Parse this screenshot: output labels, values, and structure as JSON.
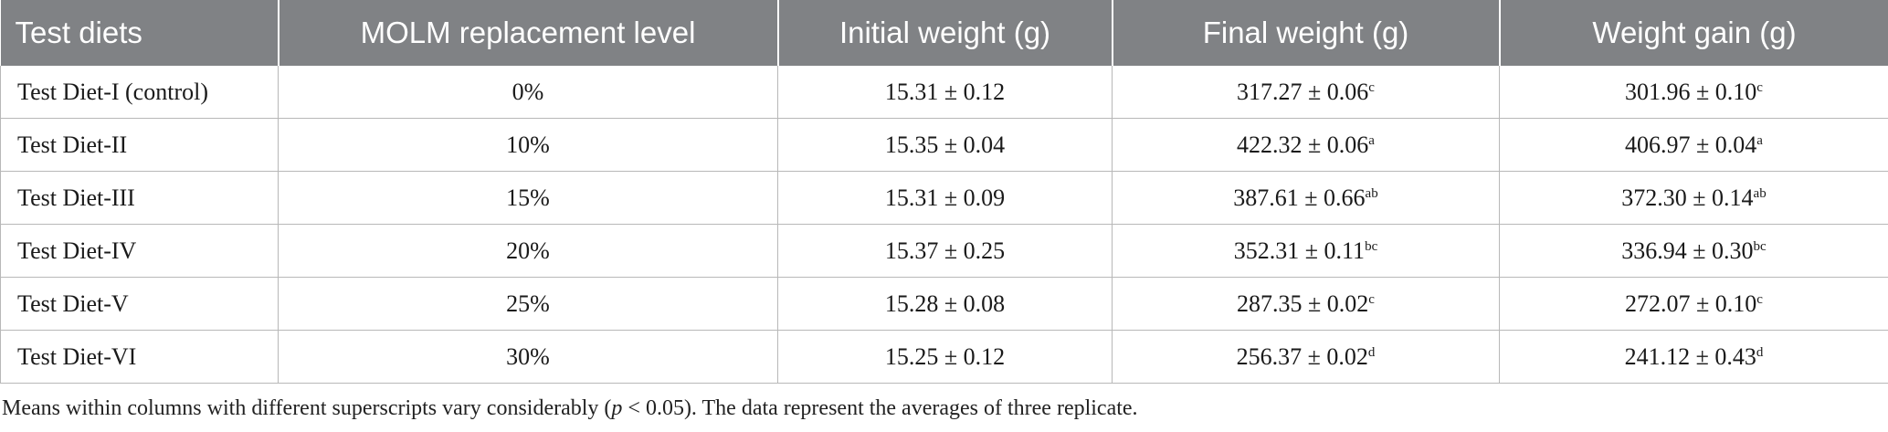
{
  "table": {
    "headers": [
      "Test diets",
      "MOLM replacement level",
      "Initial weight (g)",
      "Final weight (g)",
      "Weight gain (g)"
    ],
    "rows": [
      {
        "diet": "Test Diet-I (control)",
        "level": "0%",
        "initial": "15.31 ± 0.12",
        "final": "317.27 ± 0.06",
        "final_sup": "c",
        "gain": "301.96 ± 0.10",
        "gain_sup": "c"
      },
      {
        "diet": "Test Diet-II",
        "level": "10%",
        "initial": "15.35 ± 0.04",
        "final": "422.32 ± 0.06",
        "final_sup": "a",
        "gain": "406.97 ± 0.04",
        "gain_sup": "a"
      },
      {
        "diet": "Test Diet-III",
        "level": "15%",
        "initial": "15.31 ± 0.09",
        "final": "387.61 ± 0.66",
        "final_sup": "ab",
        "gain": "372.30 ± 0.14",
        "gain_sup": "ab"
      },
      {
        "diet": "Test Diet-IV",
        "level": "20%",
        "initial": "15.37 ± 0.25",
        "final": "352.31 ± 0.11",
        "final_sup": "bc",
        "gain": "336.94 ± 0.30",
        "gain_sup": "bc"
      },
      {
        "diet": "Test Diet-V",
        "level": "25%",
        "initial": "15.28 ± 0.08",
        "final": "287.35 ± 0.02",
        "final_sup": "c",
        "gain": "272.07 ± 0.10",
        "gain_sup": "c"
      },
      {
        "diet": "Test Diet-VI",
        "level": "30%",
        "initial": "15.25 ± 0.12",
        "final": "256.37 ± 0.02",
        "final_sup": "d",
        "gain": "241.12 ± 0.43",
        "gain_sup": "d"
      }
    ]
  },
  "footnote": {
    "before": "Means within columns with different superscripts vary considerably (",
    "italic": "p",
    "after": " < 0.05). The data represent the averages of three replicate."
  },
  "colors": {
    "header_bg": "#808285",
    "header_text": "#ffffff",
    "grid": "#b8b8b8"
  }
}
